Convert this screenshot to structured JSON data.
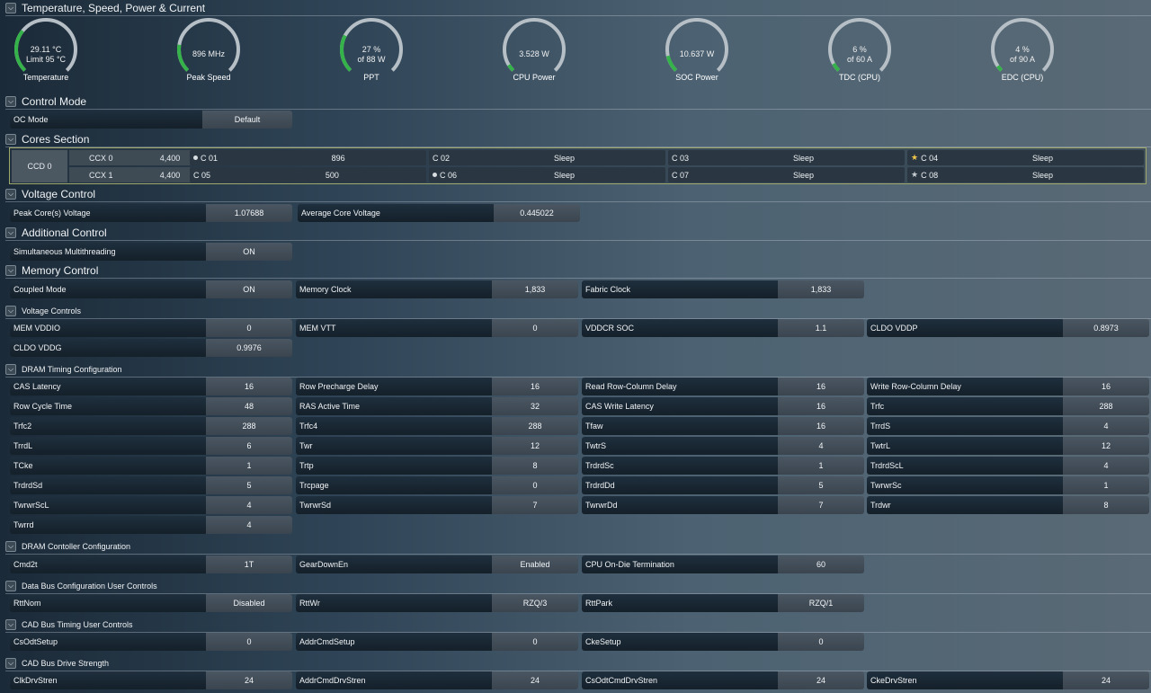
{
  "sections": {
    "temp": "Temperature, Speed, Power & Current",
    "control": "Control Mode",
    "cores": "Cores Section",
    "voltage": "Voltage Control",
    "additional": "Additional Control",
    "memory": "Memory Control",
    "voltage_controls": "Voltage Controls",
    "dram_timing": "DRAM Timing Configuration",
    "dram_controller": "DRAM Contoller Configuration",
    "data_bus": "Data Bus Configuration User Controls",
    "cad_timing": "CAD Bus Timing User Controls",
    "cad_drive": "CAD Bus Drive Strength"
  },
  "gauges": [
    {
      "l1": "29.11 °C",
      "l2": "Limit 95 °C",
      "label": "Temperature",
      "fraction": 0.31
    },
    {
      "l1": "896  MHz",
      "l2": "",
      "label": "Peak Speed",
      "fraction": 0.2
    },
    {
      "l1": "27 %",
      "l2": "of 88 W",
      "label": "PPT",
      "fraction": 0.27
    },
    {
      "l1": "3.528 W",
      "l2": "",
      "label": "CPU Power",
      "fraction": 0.05
    },
    {
      "l1": "10.637 W",
      "l2": "",
      "label": "SOC Power",
      "fraction": 0.12
    },
    {
      "l1": "6 %",
      "l2": "of 60 A",
      "label": "TDC (CPU)",
      "fraction": 0.06
    },
    {
      "l1": "4 %",
      "l2": "of 90 A",
      "label": "EDC (CPU)",
      "fraction": 0.04
    }
  ],
  "fields": {
    "oc_mode": {
      "label": "OC Mode",
      "value": "Default"
    },
    "peak_core_voltage": {
      "label": "Peak Core(s) Voltage",
      "value": "1.07688"
    },
    "avg_core_voltage": {
      "label": "Average Core Voltage",
      "value": "0.445022"
    },
    "smt": {
      "label": "Simultaneous Multithreading",
      "value": "ON"
    },
    "coupled_mode": {
      "label": "Coupled Mode",
      "value": "ON"
    },
    "memory_clock": {
      "label": "Memory Clock",
      "value": "1,833"
    },
    "fabric_clock": {
      "label": "Fabric Clock",
      "value": "1,833"
    },
    "mem_vddio": {
      "label": "MEM VDDIO",
      "value": "0"
    },
    "mem_vtt": {
      "label": "MEM VTT",
      "value": "0"
    },
    "vddcr_soc": {
      "label": "VDDCR SOC",
      "value": "1.1"
    },
    "cldo_vddp": {
      "label": "CLDO VDDP",
      "value": "0.8973"
    },
    "cldo_vddg": {
      "label": "CLDO VDDG",
      "value": "0.9976"
    }
  },
  "cores": {
    "ccd": "CCD 0",
    "ccx": [
      {
        "name": "CCX 0",
        "freq": "4,400"
      },
      {
        "name": "CCX 1",
        "freq": "4,400"
      }
    ],
    "list": [
      {
        "name": "C 01",
        "value": "896",
        "mark": "dot",
        "bar": 0.13
      },
      {
        "name": "C 02",
        "value": "Sleep",
        "mark": "",
        "bar": 0
      },
      {
        "name": "C 03",
        "value": "Sleep",
        "mark": "",
        "bar": 0
      },
      {
        "name": "C 04",
        "value": "Sleep",
        "mark": "star",
        "bar": 0
      },
      {
        "name": "C 05",
        "value": "500",
        "mark": "",
        "bar": 0.07
      },
      {
        "name": "C 06",
        "value": "Sleep",
        "mark": "dot",
        "bar": 0
      },
      {
        "name": "C 07",
        "value": "Sleep",
        "mark": "",
        "bar": 0
      },
      {
        "name": "C 08",
        "value": "Sleep",
        "mark": "star-grey",
        "bar": 0
      }
    ]
  },
  "dram_timing": [
    {
      "label": "CAS Latency",
      "value": "16"
    },
    {
      "label": "Row Precharge Delay",
      "value": "16"
    },
    {
      "label": "Read Row-Column Delay",
      "value": "16"
    },
    {
      "label": "Write Row-Column Delay",
      "value": "16"
    },
    {
      "label": "Row Cycle Time",
      "value": "48"
    },
    {
      "label": "RAS Active Time",
      "value": "32"
    },
    {
      "label": "CAS Write Latency",
      "value": "16"
    },
    {
      "label": "Trfc",
      "value": "288"
    },
    {
      "label": "Trfc2",
      "value": "288"
    },
    {
      "label": "Trfc4",
      "value": "288"
    },
    {
      "label": "Tfaw",
      "value": "16"
    },
    {
      "label": "TrrdS",
      "value": "4"
    },
    {
      "label": "TrrdL",
      "value": "6"
    },
    {
      "label": "Twr",
      "value": "12"
    },
    {
      "label": "TwtrS",
      "value": "4"
    },
    {
      "label": "TwtrL",
      "value": "12"
    },
    {
      "label": "TCke",
      "value": "1"
    },
    {
      "label": "Trtp",
      "value": "8"
    },
    {
      "label": "TrdrdSc",
      "value": "1"
    },
    {
      "label": "TrdrdScL",
      "value": "4"
    },
    {
      "label": "TrdrdSd",
      "value": "5"
    },
    {
      "label": "Trcpage",
      "value": "0"
    },
    {
      "label": "TrdrdDd",
      "value": "5"
    },
    {
      "label": "TwrwrSc",
      "value": "1"
    },
    {
      "label": "TwrwrScL",
      "value": "4"
    },
    {
      "label": "TwrwrSd",
      "value": "7"
    },
    {
      "label": "TwrwrDd",
      "value": "7"
    },
    {
      "label": "Trdwr",
      "value": "8"
    },
    {
      "label": "Twrrd",
      "value": "4"
    }
  ],
  "dram_controller": [
    {
      "label": "Cmd2t",
      "value": "1T"
    },
    {
      "label": "GearDownEn",
      "value": "Enabled"
    },
    {
      "label": "CPU On-Die Termination",
      "value": "60"
    }
  ],
  "data_bus": [
    {
      "label": "RttNom",
      "value": "Disabled"
    },
    {
      "label": "RttWr",
      "value": "RZQ/3"
    },
    {
      "label": "RttPark",
      "value": "RZQ/1"
    }
  ],
  "cad_timing": [
    {
      "label": "CsOdtSetup",
      "value": "0"
    },
    {
      "label": "AddrCmdSetup",
      "value": "0"
    },
    {
      "label": "CkeSetup",
      "value": "0"
    }
  ],
  "cad_drive": [
    {
      "label": "ClkDrvStren",
      "value": "24"
    },
    {
      "label": "AddrCmdDrvStren",
      "value": "24"
    },
    {
      "label": "CsOdtCmdDrvStren",
      "value": "24"
    },
    {
      "label": "CkeDrvStren",
      "value": "24"
    }
  ]
}
